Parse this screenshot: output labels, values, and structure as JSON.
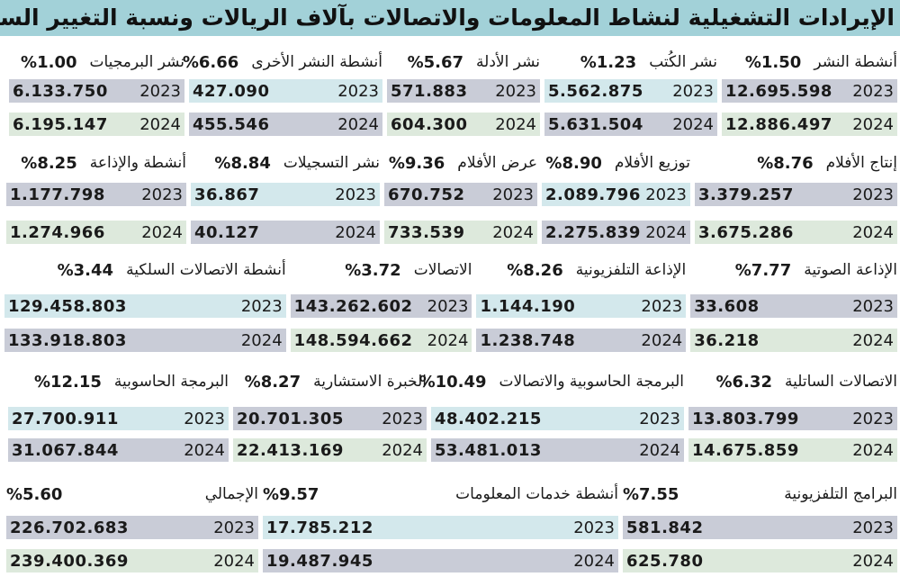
{
  "title": "الإيرادات التشغيلية لنشاط المعلومات والاتصالات بآلاف الريالات ونسبة التغيير السنوي:",
  "years": [
    "2023",
    "2024"
  ],
  "colors": {
    "title_band": "#a2d1d8",
    "grey": "#c9ccd7",
    "blue": "#d3e8ec",
    "green": "#dde9dc"
  },
  "sections": [
    {
      "columns": [
        {
          "name": "أنشطة النشر",
          "pct": "%1.50",
          "v2023": "12.695.598",
          "v2024": "12.886.497"
        },
        {
          "name": "نشر الكُتب",
          "pct": "%1.23",
          "v2023": "5.562.875",
          "v2024": "5.631.504"
        },
        {
          "name": "نشر الأدلة",
          "pct": "%5.67",
          "v2023": "571.883",
          "v2024": "604.300"
        },
        {
          "name": "أنشطة النشر الأخرى",
          "pct": "%6.66",
          "v2023": "427.090",
          "v2024": "455.546"
        },
        {
          "name": "نشر البرمجيات",
          "pct": "%1.00",
          "v2023": "6.133.750",
          "v2024": "6.195.147"
        }
      ]
    },
    {
      "columns": [
        {
          "name": "إنتاج الأفلام",
          "pct": "%8.76",
          "v2023": "3.379.257",
          "v2024": "3.675.286"
        },
        {
          "name": "توزيع الأفلام",
          "pct": "%8.90",
          "v2023": "2.089.796",
          "v2024": "2.275.839"
        },
        {
          "name": "عرض الأفلام",
          "pct": "%9.36",
          "v2023": "670.752",
          "v2024": "733.539"
        },
        {
          "name": "نشر التسجيلات",
          "pct": "%8.84",
          "v2023": "36.867",
          "v2024": "40.127"
        },
        {
          "name": "أنشطة والإذاعة",
          "pct": "%8.25",
          "v2023": "1.177.798",
          "v2024": "1.274.966"
        }
      ]
    },
    {
      "columns": [
        {
          "name": "الإذاعة الصوتية",
          "pct": "%7.77",
          "v2023": "33.608",
          "v2024": "36.218"
        },
        {
          "name": "الإذاعة التلفزيونية",
          "pct": "%8.26",
          "v2023": "1.144.190",
          "v2024": "1.238.748"
        },
        {
          "name": "الاتصالات",
          "pct": "%3.72",
          "v2023": "143.262.602",
          "v2024": "148.594.662"
        },
        {
          "name": "أنشطة الاتصالات السلكية",
          "pct": "%3.44",
          "v2023": "129.458.803",
          "v2024": "133.918.803"
        }
      ]
    },
    {
      "columns": [
        {
          "name": "الاتصالات الساتلية",
          "pct": "%6.32",
          "v2023": "13.803.799",
          "v2024": "14.675.859"
        },
        {
          "name": "البرمجة الحاسوبية والاتصالات",
          "pct": "%10.49",
          "v2023": "48.402.215",
          "v2024": "53.481.013"
        },
        {
          "name": "الخبرة الاستشارية",
          "pct": "%8.27",
          "v2023": "20.701.305",
          "v2024": "22.413.169"
        },
        {
          "name": "البرمجة الحاسوبية",
          "pct": "%12.15",
          "v2023": "27.700.911",
          "v2024": "31.067.844"
        }
      ]
    },
    {
      "columns": [
        {
          "name": "البرامج التلفزيونية",
          "pct": "%7.55",
          "v2023": "581.842",
          "v2024": "625.780"
        },
        {
          "name": "أنشطة خدمات المعلومات",
          "pct": "%9.57",
          "v2023": "17.785.212",
          "v2024": "19.487.945"
        },
        {
          "name": "الإجمالي",
          "pct": "%5.60",
          "v2023": "226.702.683",
          "v2024": "239.400.369"
        }
      ]
    }
  ]
}
